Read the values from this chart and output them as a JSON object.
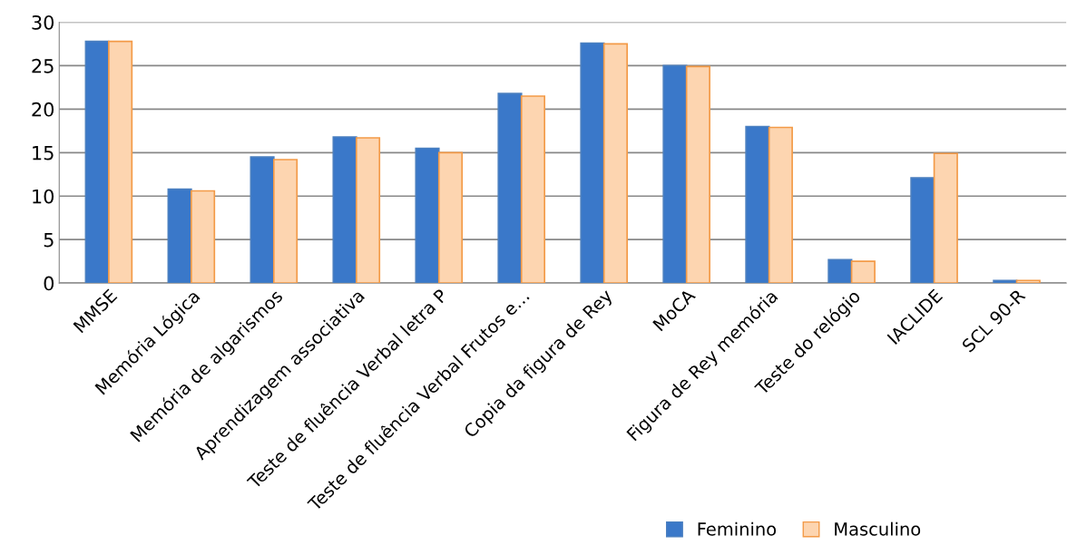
{
  "chart_data": {
    "type": "bar",
    "categories": [
      "MMSE",
      "Memória Lógica",
      "Memória de algarismos",
      "Aprendizagem associativa",
      "Teste de fluência Verbal letra P",
      "Teste de fluência Verbal Frutos e…",
      "Copia da figura de Rey",
      "MoCA",
      "Figura de Rey memória",
      "Teste do relógio",
      "IACLIDE",
      "SCL 90-R"
    ],
    "series": [
      {
        "name": "Feminino",
        "color": "#3a78c9",
        "values": [
          27.8,
          10.8,
          14.5,
          16.8,
          15.5,
          21.8,
          27.6,
          25.0,
          18.0,
          2.7,
          12.1,
          0.3
        ]
      },
      {
        "name": "Masculino",
        "color": "#fdd5b0",
        "values": [
          27.8,
          10.6,
          14.2,
          16.7,
          15.0,
          21.5,
          27.5,
          24.9,
          17.9,
          2.5,
          14.9,
          0.3
        ]
      }
    ],
    "ylim": [
      0,
      30
    ],
    "yticks": [
      0,
      5,
      10,
      15,
      20,
      25,
      30
    ],
    "grid": "y",
    "legend": "bottom right"
  }
}
